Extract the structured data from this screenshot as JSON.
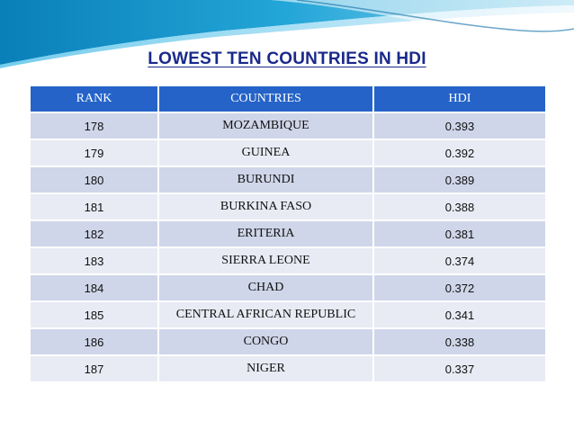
{
  "page": {
    "title": "LOWEST  TEN  COUNTRIES IN  HDI",
    "accent_color": "#2563c8",
    "title_color": "#1a2a8a"
  },
  "table": {
    "headers": [
      "RANK",
      "COUNTRIES",
      "HDI"
    ],
    "rows": [
      [
        "178",
        "MOZAMBIQUE",
        "0.393"
      ],
      [
        "179",
        "GUINEA",
        "0.392"
      ],
      [
        "180",
        "BURUNDI",
        "0.389"
      ],
      [
        "181",
        "BURKINA FASO",
        "0.388"
      ],
      [
        "182",
        "ERITERIA",
        "0.381"
      ],
      [
        "183",
        "SIERRA LEONE",
        "0.374"
      ],
      [
        "184",
        "CHAD",
        "0.372"
      ],
      [
        "185",
        "CENTRAL AFRICAN REPUBLIC",
        "0.341"
      ],
      [
        "186",
        "CONGO",
        "0.338"
      ],
      [
        "187",
        "NIGER",
        "0.337"
      ]
    ]
  }
}
